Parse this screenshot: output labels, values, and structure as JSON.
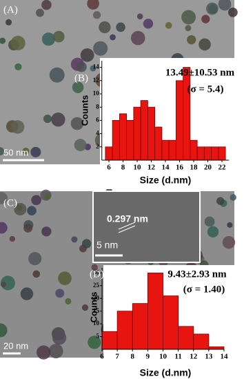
{
  "chart_data": [
    {
      "type": "histogram",
      "panel_label": "(B)",
      "annotations": [
        "13.49±10.53 nm",
        "(σ = 5.4)"
      ],
      "xlabel": "Size (d.nm)",
      "ylabel": "Counts",
      "color": "#e8140f",
      "bins": [
        5.5,
        6.5,
        7.5,
        8.5,
        9.5,
        10.5,
        11.5,
        12.5,
        13.5,
        14.5,
        15.5,
        16.5,
        17.5,
        18.5,
        19.5,
        20.5,
        21.5,
        22.5
      ],
      "values": [
        2,
        6,
        7,
        6,
        8,
        9,
        8,
        5,
        3,
        3,
        12,
        14,
        3,
        2,
        2,
        2,
        2
      ],
      "xlim": [
        5,
        23
      ],
      "ylim": [
        0,
        15
      ],
      "xticks": [
        6,
        8,
        10,
        12,
        14,
        16,
        18,
        20,
        22
      ],
      "yticks": [
        2,
        4,
        6,
        8,
        10,
        12,
        14
      ]
    },
    {
      "type": "histogram",
      "panel_label": "(D)",
      "annotations": [
        "9.43±2.93 nm",
        "(σ = 1.40)"
      ],
      "xlabel": "Size (d.nm)",
      "ylabel": "Counts",
      "color": "#e8140f",
      "bins": [
        6,
        7,
        8,
        9,
        10,
        11,
        12,
        13,
        14
      ],
      "values": [
        7,
        15,
        18,
        30,
        21,
        9,
        6,
        1
      ],
      "xlim": [
        6,
        14
      ],
      "ylim": [
        0,
        32
      ],
      "xticks": [
        6,
        7,
        8,
        9,
        10,
        11,
        12,
        13,
        14
      ],
      "yticks": [
        5,
        10,
        15,
        20,
        25,
        30
      ]
    }
  ],
  "images": [
    {
      "label": "(A)",
      "scale_bar": "50 nm"
    },
    {
      "label": "(C)",
      "scale_bar": "20 nm",
      "inset": {
        "spacing": "0.297 nm",
        "scale_bar": "5 nm"
      }
    }
  ]
}
